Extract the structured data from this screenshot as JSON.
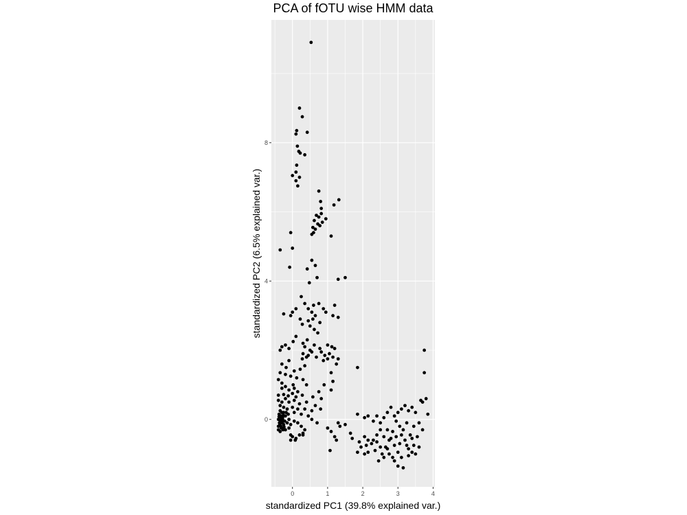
{
  "chart_data": {
    "type": "scatter",
    "title": "PCA of fOTU wise HMM data",
    "xlabel": "standardized PC1 (39.8% explained var.)",
    "ylabel": "standardized PC2 (6.5% explained var.)",
    "xlim": [
      -0.6,
      4.05
    ],
    "ylim": [
      -1.95,
      11.55
    ],
    "x_ticks": [
      0,
      1,
      2,
      3,
      4
    ],
    "y_ticks": [
      0,
      4,
      8
    ],
    "grid": true,
    "legend": "none",
    "colors": {
      "panel": "#ebebeb",
      "grid": "#ffffff",
      "point": "#000000"
    },
    "series": [
      {
        "values": [
          [
            0.53,
            10.9
          ],
          [
            0.2,
            9.0
          ],
          [
            0.28,
            8.75
          ],
          [
            0.12,
            8.35
          ],
          [
            0.1,
            8.25
          ],
          [
            0.42,
            8.3
          ],
          [
            0.14,
            7.9
          ],
          [
            0.18,
            7.75
          ],
          [
            0.35,
            7.65
          ],
          [
            0.22,
            7.7
          ],
          [
            0.12,
            7.35
          ],
          [
            0.1,
            7.15
          ],
          [
            0.0,
            7.05
          ],
          [
            0.2,
            7.0
          ],
          [
            0.1,
            6.9
          ],
          [
            0.15,
            6.75
          ],
          [
            0.75,
            6.6
          ],
          [
            0.8,
            6.3
          ],
          [
            1.32,
            6.35
          ],
          [
            0.82,
            6.1
          ],
          [
            1.18,
            6.2
          ],
          [
            0.68,
            5.9
          ],
          [
            0.75,
            5.85
          ],
          [
            0.82,
            5.95
          ],
          [
            0.62,
            5.75
          ],
          [
            0.72,
            5.65
          ],
          [
            0.85,
            5.7
          ],
          [
            0.95,
            5.8
          ],
          [
            0.58,
            5.55
          ],
          [
            0.6,
            5.4
          ],
          [
            0.55,
            5.35
          ],
          [
            1.1,
            5.3
          ],
          [
            0.65,
            5.5
          ],
          [
            0.78,
            5.6
          ],
          [
            -0.05,
            5.4
          ],
          [
            -0.35,
            4.9
          ],
          [
            0.0,
            4.95
          ],
          [
            0.55,
            4.6
          ],
          [
            0.65,
            4.45
          ],
          [
            0.42,
            4.35
          ],
          [
            -0.08,
            4.4
          ],
          [
            1.3,
            4.05
          ],
          [
            1.5,
            4.1
          ],
          [
            0.48,
            3.95
          ],
          [
            0.7,
            4.1
          ],
          [
            0.25,
            3.55
          ],
          [
            0.35,
            3.35
          ],
          [
            0.6,
            3.3
          ],
          [
            0.75,
            3.35
          ],
          [
            0.1,
            3.2
          ],
          [
            0.0,
            3.1
          ],
          [
            0.45,
            3.2
          ],
          [
            0.88,
            3.2
          ],
          [
            0.55,
            3.1
          ],
          [
            0.65,
            3.0
          ],
          [
            0.95,
            3.1
          ],
          [
            1.2,
            3.3
          ],
          [
            1.3,
            2.95
          ],
          [
            1.15,
            3.0
          ],
          [
            0.22,
            2.9
          ],
          [
            0.45,
            2.85
          ],
          [
            0.58,
            2.9
          ],
          [
            0.78,
            2.8
          ],
          [
            0.28,
            2.75
          ],
          [
            0.5,
            2.7
          ],
          [
            0.62,
            2.6
          ],
          [
            -0.25,
            3.05
          ],
          [
            -0.05,
            3.0
          ],
          [
            0.1,
            2.4
          ],
          [
            0.42,
            2.3
          ],
          [
            0.72,
            2.5
          ],
          [
            0.3,
            2.2
          ],
          [
            0.02,
            2.25
          ],
          [
            -0.2,
            2.15
          ],
          [
            -0.35,
            2.0
          ],
          [
            -0.3,
            2.1
          ],
          [
            -0.1,
            2.05
          ],
          [
            0.35,
            2.1
          ],
          [
            0.5,
            2.0
          ],
          [
            0.62,
            2.15
          ],
          [
            0.78,
            2.05
          ],
          [
            1.0,
            2.15
          ],
          [
            1.12,
            2.1
          ],
          [
            1.2,
            2.05
          ],
          [
            0.3,
            1.9
          ],
          [
            0.45,
            1.85
          ],
          [
            0.55,
            1.95
          ],
          [
            0.68,
            1.8
          ],
          [
            0.82,
            1.95
          ],
          [
            0.92,
            1.85
          ],
          [
            1.05,
            1.9
          ],
          [
            1.15,
            1.8
          ],
          [
            1.3,
            1.75
          ],
          [
            0.28,
            1.75
          ],
          [
            0.4,
            1.8
          ],
          [
            0.88,
            1.7
          ],
          [
            1.0,
            1.75
          ],
          [
            -0.1,
            1.7
          ],
          [
            -0.3,
            1.6
          ],
          [
            -0.18,
            1.5
          ],
          [
            0.05,
            1.4
          ],
          [
            0.22,
            1.45
          ],
          [
            0.35,
            1.55
          ],
          [
            1.85,
            1.5
          ],
          [
            -0.35,
            1.35
          ],
          [
            -0.2,
            1.3
          ],
          [
            -0.05,
            1.25
          ],
          [
            0.12,
            1.2
          ],
          [
            0.3,
            1.15
          ],
          [
            1.1,
            1.35
          ],
          [
            1.25,
            1.6
          ],
          [
            -0.4,
            1.15
          ],
          [
            -0.3,
            1.05
          ],
          [
            0.02,
            1.0
          ],
          [
            0.4,
            1.0
          ],
          [
            0.9,
            1.0
          ],
          [
            1.15,
            1.1
          ],
          [
            -0.3,
            0.9
          ],
          [
            -0.2,
            0.95
          ],
          [
            -0.1,
            0.85
          ],
          [
            0.05,
            0.9
          ],
          [
            0.15,
            0.8
          ],
          [
            0.75,
            0.8
          ],
          [
            1.1,
            0.85
          ],
          [
            -0.4,
            0.7
          ],
          [
            -0.25,
            0.72
          ],
          [
            -0.12,
            0.68
          ],
          [
            0.0,
            0.75
          ],
          [
            0.1,
            0.65
          ],
          [
            0.28,
            0.7
          ],
          [
            0.58,
            0.65
          ],
          [
            0.82,
            0.6
          ],
          [
            -0.4,
            0.55
          ],
          [
            -0.3,
            0.5
          ],
          [
            -0.2,
            0.6
          ],
          [
            -0.1,
            0.5
          ],
          [
            0.05,
            0.55
          ],
          [
            0.2,
            0.45
          ],
          [
            0.4,
            0.5
          ],
          [
            0.65,
            0.4
          ],
          [
            0.8,
            0.3
          ],
          [
            -0.35,
            0.4
          ],
          [
            -0.25,
            0.35
          ],
          [
            -0.15,
            0.3
          ],
          [
            0.0,
            0.35
          ],
          [
            0.15,
            0.3
          ],
          [
            0.35,
            0.3
          ],
          [
            0.55,
            0.25
          ],
          [
            -0.35,
            0.25
          ],
          [
            -0.25,
            0.2
          ],
          [
            -0.12,
            0.15
          ],
          [
            0.05,
            0.2
          ],
          [
            0.25,
            0.15
          ],
          [
            0.45,
            0.1
          ],
          [
            -0.38,
            0.15
          ],
          [
            -0.33,
            0.1
          ],
          [
            -0.28,
            0.05
          ],
          [
            -0.4,
            0.0
          ],
          [
            -0.35,
            -0.05
          ],
          [
            -0.3,
            -0.1
          ],
          [
            -0.25,
            -0.15
          ],
          [
            -0.4,
            -0.2
          ],
          [
            -0.32,
            -0.25
          ],
          [
            -0.27,
            -0.3
          ],
          [
            -0.38,
            0.08
          ],
          [
            -0.34,
            -0.02
          ],
          [
            -0.29,
            -0.08
          ],
          [
            -0.22,
            -0.05
          ],
          [
            -0.36,
            -0.15
          ],
          [
            -0.3,
            0.2
          ],
          [
            -0.2,
            0.1
          ],
          [
            -0.24,
            -0.22
          ],
          [
            -0.4,
            -0.3
          ],
          [
            -0.35,
            -0.35
          ],
          [
            -0.28,
            0.0
          ],
          [
            -0.32,
            0.05
          ],
          [
            -0.37,
            -0.1
          ],
          [
            -0.26,
            0.12
          ],
          [
            -0.33,
            -0.2
          ],
          [
            -0.18,
            0.2
          ],
          [
            -0.15,
            -0.1
          ],
          [
            -0.1,
            0.0
          ],
          [
            -0.05,
            -0.15
          ],
          [
            0.05,
            -0.05
          ],
          [
            -0.2,
            -0.3
          ],
          [
            -0.1,
            -0.25
          ],
          [
            -0.05,
            -0.45
          ],
          [
            0.0,
            -0.5
          ],
          [
            0.1,
            -0.55
          ],
          [
            0.2,
            -0.45
          ],
          [
            0.3,
            -0.4
          ],
          [
            0.25,
            -0.2
          ],
          [
            0.15,
            -0.1
          ],
          [
            0.35,
            -0.3
          ],
          [
            -0.05,
            -0.6
          ],
          [
            0.08,
            -0.6
          ],
          [
            0.3,
            -0.45
          ],
          [
            0.55,
            0.0
          ],
          [
            0.7,
            -0.1
          ],
          [
            1.0,
            -0.25
          ],
          [
            1.2,
            -0.5
          ],
          [
            1.1,
            -0.35
          ],
          [
            1.3,
            -0.1
          ],
          [
            1.35,
            -0.2
          ],
          [
            1.07,
            -0.9
          ],
          [
            1.25,
            -0.6
          ],
          [
            1.5,
            -0.15
          ],
          [
            1.65,
            -0.4
          ],
          [
            1.85,
            0.15
          ],
          [
            1.7,
            -0.55
          ],
          [
            1.9,
            -0.65
          ],
          [
            2.05,
            -0.5
          ],
          [
            2.15,
            -0.6
          ],
          [
            1.85,
            -0.95
          ],
          [
            1.95,
            -0.8
          ],
          [
            2.05,
            0.05
          ],
          [
            2.15,
            0.1
          ],
          [
            2.3,
            -0.05
          ],
          [
            2.4,
            0.1
          ],
          [
            2.5,
            -0.1
          ],
          [
            2.6,
            0.05
          ],
          [
            2.7,
            0.2
          ],
          [
            2.8,
            0.35
          ],
          [
            2.9,
            0.1
          ],
          [
            3.0,
            0.2
          ],
          [
            3.1,
            0.3
          ],
          [
            3.2,
            0.4
          ],
          [
            3.3,
            0.25
          ],
          [
            3.4,
            0.35
          ],
          [
            3.5,
            0.2
          ],
          [
            3.65,
            0.55
          ],
          [
            3.7,
            0.5
          ],
          [
            3.85,
            0.15
          ],
          [
            3.6,
            -0.1
          ],
          [
            3.7,
            -0.3
          ],
          [
            3.55,
            -0.5
          ],
          [
            3.45,
            -0.75
          ],
          [
            3.4,
            -0.95
          ],
          [
            3.5,
            -1.0
          ],
          [
            3.3,
            -0.85
          ],
          [
            3.2,
            -0.6
          ],
          [
            3.1,
            -0.45
          ],
          [
            3.05,
            -0.2
          ],
          [
            2.95,
            -0.05
          ],
          [
            2.85,
            -0.35
          ],
          [
            2.75,
            -0.6
          ],
          [
            2.65,
            -0.8
          ],
          [
            2.55,
            -1.0
          ],
          [
            2.45,
            -1.2
          ],
          [
            2.35,
            -0.9
          ],
          [
            2.25,
            -0.7
          ],
          [
            2.15,
            -0.95
          ],
          [
            2.05,
            -1.0
          ],
          [
            2.1,
            -0.75
          ],
          [
            2.3,
            -0.6
          ],
          [
            2.4,
            -0.45
          ],
          [
            2.5,
            -0.3
          ],
          [
            2.6,
            -0.5
          ],
          [
            2.7,
            -0.3
          ],
          [
            2.8,
            -0.55
          ],
          [
            2.9,
            -0.75
          ],
          [
            3.0,
            -0.95
          ],
          [
            3.1,
            -1.1
          ],
          [
            3.15,
            -1.4
          ],
          [
            3.0,
            -1.35
          ],
          [
            2.85,
            -1.1
          ],
          [
            2.75,
            -1.0
          ],
          [
            2.95,
            -0.5
          ],
          [
            3.05,
            -0.7
          ],
          [
            3.15,
            -0.3
          ],
          [
            3.25,
            -0.1
          ],
          [
            3.35,
            -0.45
          ],
          [
            3.45,
            -0.2
          ],
          [
            3.25,
            -0.75
          ],
          [
            2.6,
            -1.1
          ],
          [
            2.5,
            -0.8
          ],
          [
            2.4,
            -0.65
          ],
          [
            2.7,
            -0.85
          ],
          [
            2.9,
            -1.2
          ],
          [
            3.3,
            -1.05
          ],
          [
            3.4,
            -0.55
          ],
          [
            3.6,
            -0.8
          ],
          [
            3.75,
            2.0
          ],
          [
            3.75,
            1.35
          ],
          [
            3.8,
            0.6
          ]
        ]
      }
    ]
  }
}
